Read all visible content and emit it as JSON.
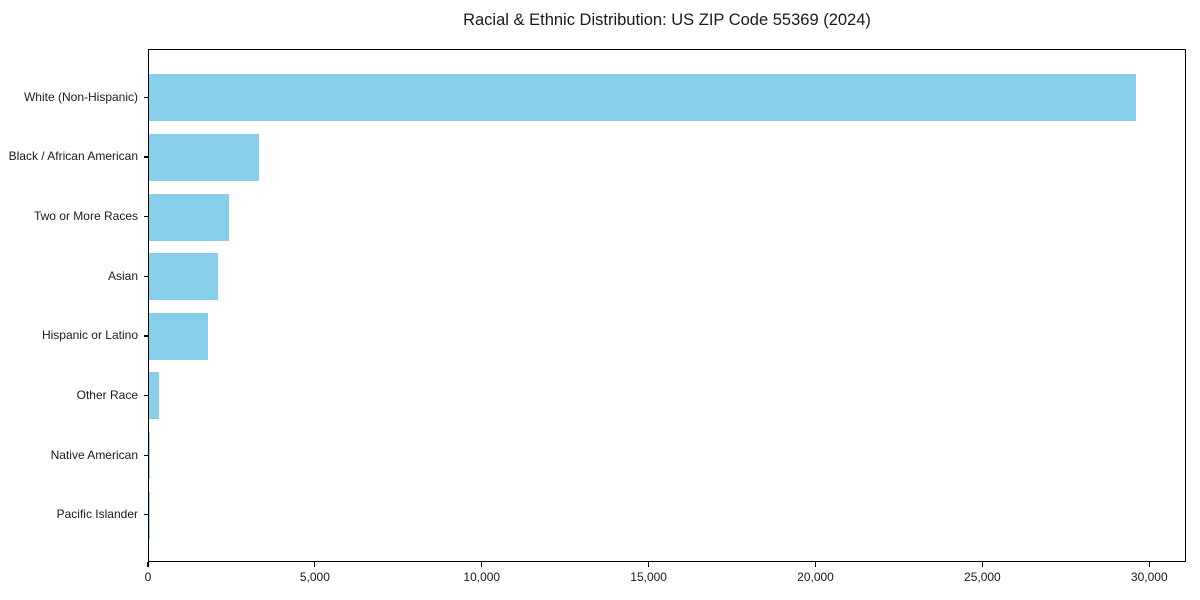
{
  "chart_data": {
    "type": "bar",
    "orientation": "horizontal",
    "title": "Racial & Ethnic Distribution: US ZIP Code 55369 (2024)",
    "categories": [
      "White (Non-Hispanic)",
      "Black / African American",
      "Two or More Races",
      "Asian",
      "Hispanic or Latino",
      "Other Race",
      "Native American",
      "Pacific Islander"
    ],
    "values": [
      29580,
      3290,
      2390,
      2070,
      1770,
      300,
      40,
      10
    ],
    "xlabel": "",
    "ylabel": "",
    "xlim": [
      0,
      31100
    ],
    "xticks": [
      0,
      5000,
      10000,
      15000,
      20000,
      25000,
      30000
    ],
    "xtick_labels": [
      "0",
      "5,000",
      "10,000",
      "15,000",
      "20,000",
      "25,000",
      "30,000"
    ],
    "bar_color": "#87CEEB",
    "frame_color": "#000000",
    "text_color": "#1a1a1a",
    "grid": false,
    "legend": null
  }
}
